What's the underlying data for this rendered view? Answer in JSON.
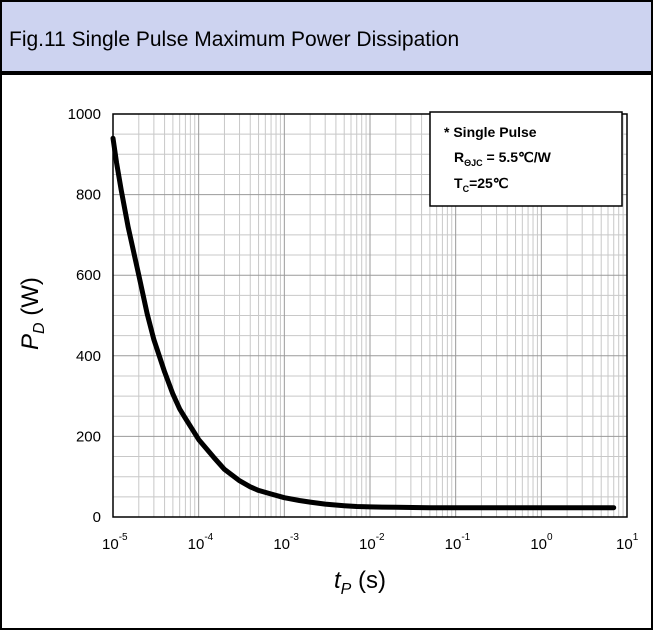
{
  "title": "Fig.11 Single Pulse Maximum Power Dissipation",
  "colors": {
    "header_bg": "#cdd3f0",
    "grid": "#c8c8c8",
    "curve": "#000000"
  },
  "chart_data": {
    "type": "line",
    "x_scale": "log",
    "x_ticks": [
      {
        "base": "10",
        "exp": "-5"
      },
      {
        "base": "10",
        "exp": "-4"
      },
      {
        "base": "10",
        "exp": "-3"
      },
      {
        "base": "10",
        "exp": "-2"
      },
      {
        "base": "10",
        "exp": "-1"
      },
      {
        "base": "10",
        "exp": "0"
      },
      {
        "base": "10",
        "exp": "1"
      }
    ],
    "y_ticks": [
      "0",
      "200",
      "400",
      "600",
      "800",
      "1000"
    ],
    "xlim": [
      1e-05,
      10
    ],
    "ylim": [
      0,
      1000
    ],
    "grid": true,
    "xlabel": {
      "main": "t",
      "sub": "P",
      "unit": " (s)"
    },
    "ylabel": {
      "main": "P",
      "sub": "D",
      "unit": " (W)"
    },
    "legend": {
      "position": "top-right",
      "line1": "* Single Pulse",
      "line2_main": "R",
      "line2_sub": "ΘJC",
      "line2_rest": " = 5.5℃/W",
      "line3_main": "T",
      "line3_sub": "C",
      "line3_rest": "=25℃"
    },
    "series": [
      {
        "x": [
          1e-05,
          1.1e-05,
          1.25e-05,
          1.5e-05,
          2e-05,
          2.5e-05,
          3e-05,
          4e-05,
          5e-05,
          6e-05,
          7e-05,
          8e-05,
          0.0001,
          0.00015,
          0.0002,
          0.0003,
          0.0004,
          0.0005,
          0.0007,
          0.001,
          0.0015,
          0.002,
          0.003,
          0.005,
          0.007,
          0.01,
          0.02,
          0.05,
          0.1,
          1,
          7
        ],
        "y": [
          940,
          880,
          810,
          720,
          600,
          505,
          440,
          360,
          305,
          268,
          245,
          225,
          192,
          148,
          118,
          90,
          75,
          66,
          57,
          48,
          41,
          37,
          32,
          28,
          26,
          25,
          24,
          23,
          23,
          23,
          23
        ]
      }
    ]
  }
}
